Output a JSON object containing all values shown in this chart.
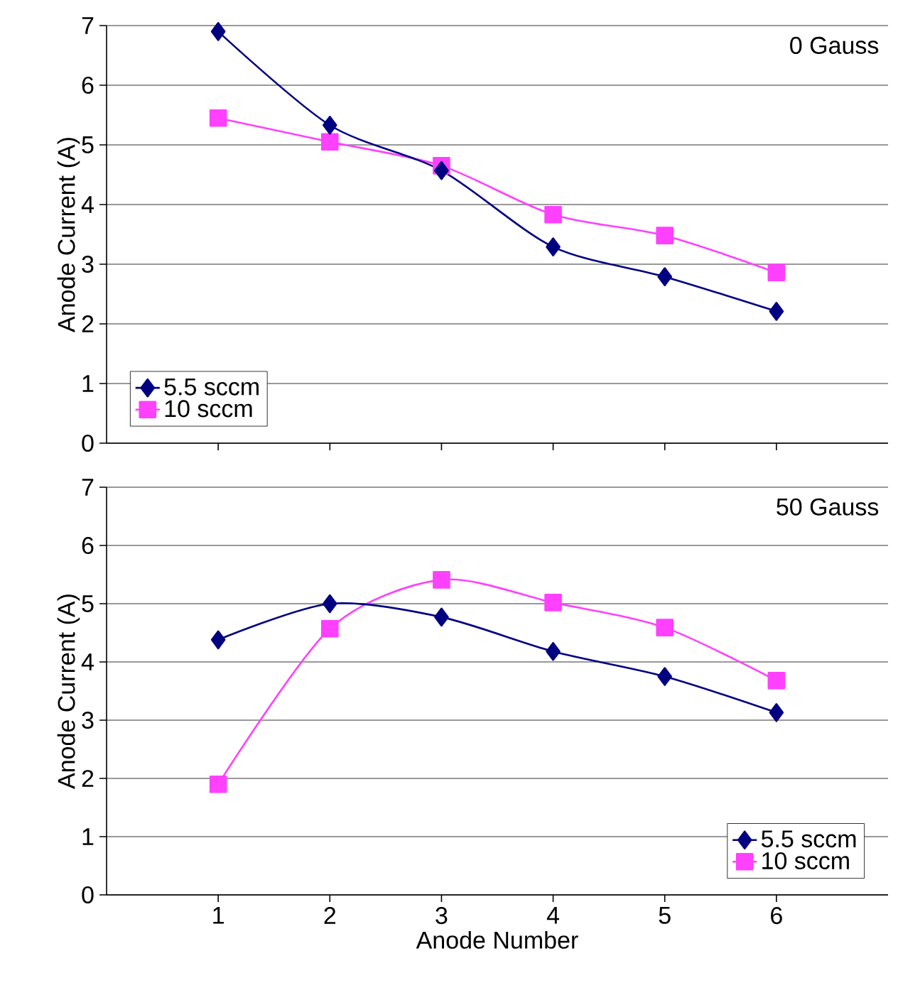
{
  "chart_data": [
    {
      "type": "line",
      "annotations": [
        "0 Gauss"
      ],
      "ylabel": "Anode Current (A)",
      "x": [
        1,
        2,
        3,
        4,
        5,
        6
      ],
      "xlim": [
        0,
        7
      ],
      "xticks": [
        1,
        2,
        3,
        4,
        5,
        6
      ],
      "ylim": [
        0,
        7
      ],
      "yticks": [
        0,
        1,
        2,
        3,
        4,
        5,
        6,
        7
      ],
      "grid": "y",
      "legend": "bottom left",
      "tick_labels": "y",
      "line_style": "solid",
      "series": [
        {
          "name": "5.5 sccm",
          "color": "#000080",
          "marker": "diamond",
          "values": [
            6.9,
            5.33,
            4.57,
            3.29,
            2.79,
            2.21
          ]
        },
        {
          "name": "10 sccm",
          "color": "#ff40ff",
          "marker": "square",
          "values": [
            5.45,
            5.05,
            4.65,
            3.83,
            3.48,
            2.86
          ]
        }
      ]
    },
    {
      "type": "line",
      "annotations": [
        "50 Gauss"
      ],
      "xlabel": "Anode Number",
      "ylabel": "Anode Current (A)",
      "x": [
        1,
        2,
        3,
        4,
        5,
        6
      ],
      "xlim": [
        0,
        7
      ],
      "xticks": [
        1,
        2,
        3,
        4,
        5,
        6
      ],
      "ylim": [
        0,
        7
      ],
      "yticks": [
        0,
        1,
        2,
        3,
        4,
        5,
        6,
        7
      ],
      "grid": "y",
      "legend": "bottom right",
      "line_style": "solid",
      "series": [
        {
          "name": "5.5 sccm",
          "color": "#000080",
          "marker": "diamond",
          "values": [
            4.38,
            5.0,
            4.77,
            4.18,
            3.75,
            3.13
          ]
        },
        {
          "name": "10 sccm",
          "color": "#ff40ff",
          "marker": "square",
          "values": [
            1.9,
            4.57,
            5.41,
            5.02,
            4.59,
            3.68
          ]
        }
      ]
    }
  ]
}
